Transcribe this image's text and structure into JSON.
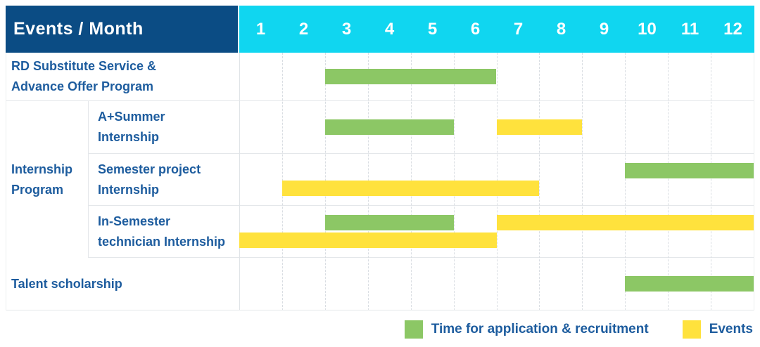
{
  "colors": {
    "header_bg": "#0B4C84",
    "months_bg": "#10D6F0",
    "label_text": "#1D5C9E",
    "green": "#8CC765",
    "yellow": "#FFE23D"
  },
  "chart_data": {
    "type": "bar",
    "subtype": "gantt-timeline",
    "corner_title": "Events / Month",
    "x_axis_label": "Month",
    "x_range": [
      1,
      12
    ],
    "months": [
      "1",
      "2",
      "3",
      "4",
      "5",
      "6",
      "7",
      "8",
      "9",
      "10",
      "11",
      "12"
    ],
    "grid": "dashed-vertical-month-lines",
    "legend_position": "bottom-right",
    "legend": [
      {
        "color": "green",
        "label": "Time for application & recruitment"
      },
      {
        "color": "yellow",
        "label": "Events"
      }
    ],
    "rows": [
      {
        "label_lines": [
          "RD Substitute Service &",
          "Advance Offer Program"
        ],
        "lanes": [
          [
            {
              "color": "green",
              "start_month": 3,
              "end_month": 6
            }
          ]
        ]
      },
      {
        "group_label_lines": [
          "Internship",
          "Program"
        ],
        "sub_rows": [
          {
            "label_lines": [
              "A+Summer",
              "Internship"
            ],
            "lanes": [
              [
                {
                  "color": "green",
                  "start_month": 3,
                  "end_month": 5
                },
                {
                  "color": "yellow",
                  "start_month": 7,
                  "end_month": 8
                }
              ]
            ]
          },
          {
            "label_lines": [
              "Semester project",
              "Internship"
            ],
            "lanes": [
              [
                {
                  "color": "green",
                  "start_month": 10,
                  "end_month": 12
                }
              ],
              [
                {
                  "color": "yellow",
                  "start_month": 2,
                  "end_month": 7
                }
              ]
            ]
          },
          {
            "label_lines": [
              "In-Semester",
              "technician Internship"
            ],
            "lanes": [
              [
                {
                  "color": "green",
                  "start_month": 3,
                  "end_month": 5
                },
                {
                  "color": "yellow",
                  "start_month": 7,
                  "end_month": 12
                }
              ],
              [
                {
                  "color": "yellow",
                  "start_month": 1,
                  "end_month": 6
                }
              ]
            ]
          }
        ]
      },
      {
        "label_lines": [
          "Talent scholarship"
        ],
        "lanes": [
          [
            {
              "color": "green",
              "start_month": 10,
              "end_month": 12
            }
          ]
        ]
      }
    ]
  }
}
